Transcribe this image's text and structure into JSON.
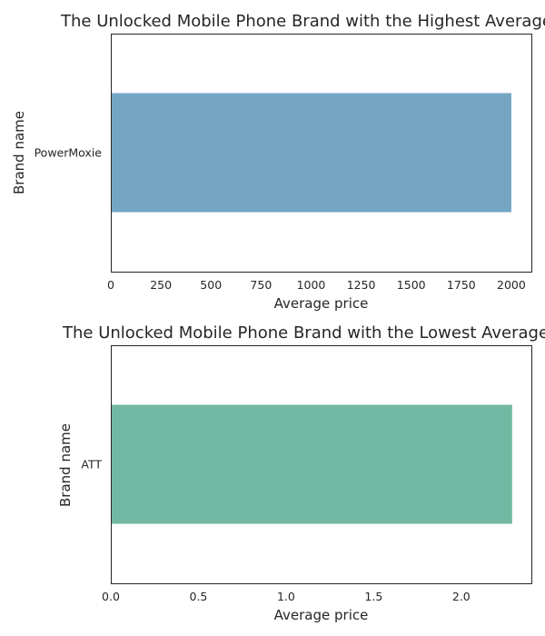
{
  "chart_data": [
    {
      "type": "bar",
      "orientation": "horizontal",
      "title": "The Unlocked Mobile Phone Brand with the Highest Average P",
      "xlabel": "Average price",
      "ylabel": "Brand name",
      "categories": [
        "PowerMoxie"
      ],
      "values": [
        2000
      ],
      "xlim": [
        0,
        2100
      ],
      "xticks": [
        0,
        250,
        500,
        750,
        1000,
        1250,
        1500,
        1750,
        2000
      ],
      "xtick_labels": [
        "0",
        "250",
        "500",
        "750",
        "1000",
        "1250",
        "1500",
        "1750",
        "2000"
      ],
      "bar_color": "#74a6c4",
      "grid": false
    },
    {
      "type": "bar",
      "orientation": "horizontal",
      "title": "The Unlocked Mobile Phone Brand with the Lowest Average P",
      "xlabel": "Average price",
      "ylabel": "Brand name",
      "categories": [
        "ATT"
      ],
      "values": [
        2.29
      ],
      "xlim": [
        0,
        2.4
      ],
      "xticks": [
        0,
        0.5,
        1.0,
        1.5,
        2.0
      ],
      "xtick_labels": [
        "0.0",
        "0.5",
        "1.0",
        "1.5",
        "2.0"
      ],
      "bar_color": "#72b8a2",
      "grid": false
    }
  ]
}
